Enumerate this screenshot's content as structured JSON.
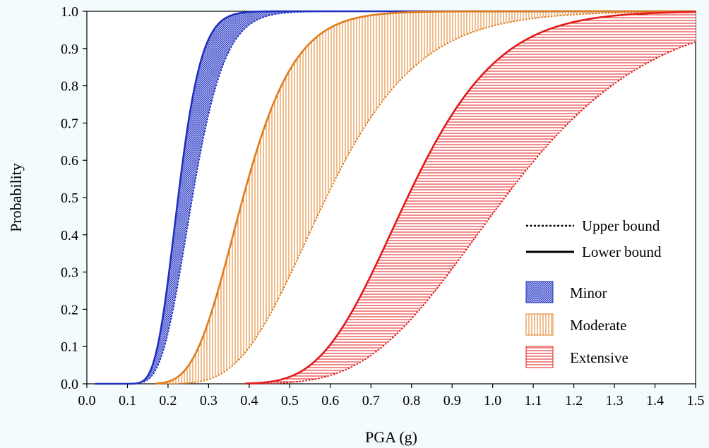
{
  "chart_data": {
    "type": "line",
    "title": "",
    "xlabel": "PGA (g)",
    "ylabel": "Probability",
    "xlim": [
      0.0,
      1.5
    ],
    "ylim": [
      0.0,
      1.0
    ],
    "x_ticks": [
      "0.0",
      "0.1",
      "0.2",
      "0.3",
      "0.4",
      "0.5",
      "0.6",
      "0.7",
      "0.8",
      "0.9",
      "1.0",
      "1.1",
      "1.2",
      "1.3",
      "1.4",
      "1.5"
    ],
    "y_ticks": [
      "0.0",
      "0.1",
      "0.2",
      "0.3",
      "0.4",
      "0.5",
      "0.6",
      "0.7",
      "0.8",
      "0.9",
      "1.0"
    ],
    "grid": false,
    "legend_position": "lower-right",
    "bounds_legend": [
      {
        "label": "Upper bound",
        "style": "dotted"
      },
      {
        "label": "Lower bound",
        "style": "solid"
      }
    ],
    "series": [
      {
        "name": "Minor",
        "color": "#1f2fbf",
        "fill_pattern": "crosshatch",
        "lower_bound": {
          "median": 0.225,
          "beta": 0.2,
          "x_start": 0.02
        },
        "upper_bound": {
          "median": 0.26,
          "beta": 0.24,
          "x_start": 0.14
        }
      },
      {
        "name": "Moderate",
        "color": "#e07b1a",
        "fill_pattern": "vertical",
        "lower_bound": {
          "median": 0.385,
          "beta": 0.26,
          "x_start": 0.17
        },
        "upper_bound": {
          "median": 0.59,
          "beta": 0.3,
          "x_start": 0.17
        }
      },
      {
        "name": "Extensive",
        "color": "#e41a1a",
        "fill_pattern": "horizontal",
        "lower_bound": {
          "median": 0.79,
          "beta": 0.22,
          "x_start": 0.39
        },
        "upper_bound": {
          "median": 1.03,
          "beta": 0.27,
          "x_start": 0.39
        }
      }
    ]
  }
}
